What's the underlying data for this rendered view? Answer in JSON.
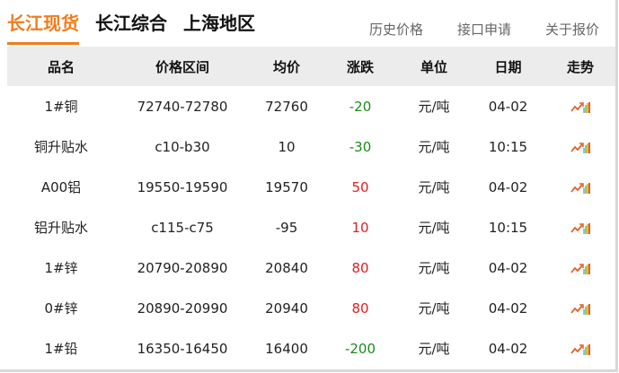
{
  "tabs": [
    {
      "label": "长江现货",
      "active": true
    },
    {
      "label": "长江综合"
    },
    {
      "label": "上海地区"
    }
  ],
  "links": [
    "历史价格",
    "接口申请",
    "关于报价"
  ],
  "columns": [
    "品名",
    "价格区间",
    "均价",
    "涨跌",
    "单位",
    "日期",
    "走势"
  ],
  "rows": [
    {
      "name": "1#铜",
      "range": "72740-72780",
      "avg": "72760",
      "change": "-20",
      "unit": "元/吨",
      "date": "04-02"
    },
    {
      "name": "铜升贴水",
      "range": "c10-b30",
      "avg": "10",
      "change": "-30",
      "unit": "元/吨",
      "date": "10:15"
    },
    {
      "name": "A00铝",
      "range": "19550-19590",
      "avg": "19570",
      "change": "50",
      "unit": "元/吨",
      "date": "04-02"
    },
    {
      "name": "铝升贴水",
      "range": "c115-c75",
      "avg": "-95",
      "change": "10",
      "unit": "元/吨",
      "date": "10:15"
    },
    {
      "name": "1#锌",
      "range": "20790-20890",
      "avg": "20840",
      "change": "80",
      "unit": "元/吨",
      "date": "04-02"
    },
    {
      "name": "0#锌",
      "range": "20890-20990",
      "avg": "20940",
      "change": "80",
      "unit": "元/吨",
      "date": "04-02"
    },
    {
      "name": "1#铅",
      "range": "16350-16450",
      "avg": "16400",
      "change": "-200",
      "unit": "元/吨",
      "date": "04-02"
    }
  ],
  "colors": {
    "accent": "#f07d1d",
    "up": "#e02020",
    "down": "#1a8a1a"
  },
  "trend_icon": "trend-chart-icon"
}
